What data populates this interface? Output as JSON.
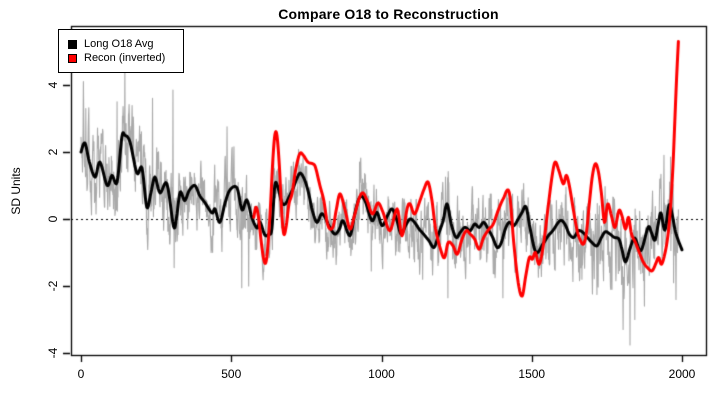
{
  "chart_data": {
    "type": "line",
    "title": "Compare O18 to Reconstruction",
    "ylabel": "SD Units",
    "xlabel": "",
    "xlim": [
      -33,
      2079
    ],
    "ylim": [
      -4.06,
      5.76
    ],
    "x_ticks": [
      0,
      500,
      1000,
      1500,
      2000
    ],
    "y_ticks": [
      -4,
      -2,
      0,
      2,
      4
    ],
    "zero_line": true,
    "grid": false,
    "legend": {
      "position": "topleft",
      "entries": [
        {
          "label": "Long O18 Avg",
          "color": "#000000"
        },
        {
          "label": "Recon (inverted)",
          "color": "#FF0000"
        }
      ]
    },
    "series": [
      {
        "key": "gray",
        "name": "O18 annual (raw)",
        "color": "#AAAAAA",
        "width": 1.1,
        "style": "noisy",
        "derived_from": "Long O18 Avg",
        "noise": {
          "seed": 20,
          "ar": 0.62,
          "amp": 0.75,
          "range": [
            0,
            1988
          ],
          "envelope": [
            [
              0,
              300,
              1.15
            ],
            [
              300,
              600,
              1.0
            ],
            [
              600,
              1100,
              0.9
            ],
            [
              1100,
              1550,
              1.0
            ],
            [
              1550,
              1990,
              1.2
            ]
          ],
          "spikes": [
            [
              8,
              4.1
            ],
            [
              16,
              3.3
            ],
            [
              120,
              3.5
            ],
            [
              146,
              4.65
            ],
            [
              238,
              3.6
            ],
            [
              306,
              3.85
            ],
            [
              310,
              -1.45
            ],
            [
              486,
              2.75
            ],
            [
              535,
              -2.05
            ],
            [
              558,
              -2.0
            ],
            [
              927,
              1.7
            ],
            [
              966,
              -1.55
            ],
            [
              1137,
              -1.8
            ],
            [
              1213,
              1.25
            ],
            [
              1221,
              -2.35
            ],
            [
              1378,
              -1.75
            ],
            [
              1404,
              -2.35
            ],
            [
              1667,
              -1.8
            ],
            [
              1717,
              -2.25
            ],
            [
              1767,
              -2.1
            ],
            [
              1804,
              -3.3
            ],
            [
              1827,
              -3.76
            ],
            [
              1843,
              -3.0
            ],
            [
              1875,
              -2.6
            ],
            [
              1940,
              1.9
            ],
            [
              1962,
              1.85
            ],
            [
              1972,
              -1.9
            ],
            [
              1980,
              -2.4
            ]
          ]
        }
      },
      {
        "key": "black",
        "name": "Long O18 Avg",
        "color": "#000000",
        "width": 3,
        "points": [
          [
            0,
            2.0
          ],
          [
            13,
            2.27
          ],
          [
            28,
            1.7
          ],
          [
            47,
            1.25
          ],
          [
            63,
            1.7
          ],
          [
            87,
            1.0
          ],
          [
            103,
            1.3
          ],
          [
            120,
            1.1
          ],
          [
            136,
            2.45
          ],
          [
            146,
            2.5
          ],
          [
            163,
            2.3
          ],
          [
            186,
            1.37
          ],
          [
            203,
            1.52
          ],
          [
            219,
            0.35
          ],
          [
            233,
            0.8
          ],
          [
            246,
            1.25
          ],
          [
            263,
            0.78
          ],
          [
            286,
            1.05
          ],
          [
            308,
            -0.22
          ],
          [
            318,
            0.05
          ],
          [
            330,
            0.8
          ],
          [
            345,
            0.55
          ],
          [
            360,
            0.85
          ],
          [
            379,
            1.0
          ],
          [
            395,
            0.7
          ],
          [
            413,
            0.48
          ],
          [
            436,
            0.18
          ],
          [
            446,
            0.3
          ],
          [
            462,
            -0.1
          ],
          [
            480,
            0.5
          ],
          [
            496,
            0.87
          ],
          [
            519,
            0.93
          ],
          [
            536,
            0.27
          ],
          [
            552,
            0.57
          ],
          [
            569,
            0.03
          ],
          [
            586,
            -0.27
          ],
          [
            596,
            -0.1
          ],
          [
            612,
            -0.48
          ],
          [
            625,
            -0.45
          ],
          [
            635,
            -0.3
          ],
          [
            645,
            1.0
          ],
          [
            655,
            0.95
          ],
          [
            668,
            0.5
          ],
          [
            680,
            0.45
          ],
          [
            692,
            0.65
          ],
          [
            705,
            0.9
          ],
          [
            718,
            1.2
          ],
          [
            730,
            1.37
          ],
          [
            745,
            1.15
          ],
          [
            758,
            0.75
          ],
          [
            770,
            0.25
          ],
          [
            785,
            -0.1
          ],
          [
            800,
            0.15
          ],
          [
            812,
            0.05
          ],
          [
            828,
            -0.25
          ],
          [
            845,
            -0.45
          ],
          [
            860,
            -0.3
          ],
          [
            872,
            -0.05
          ],
          [
            895,
            -0.5
          ],
          [
            912,
            0.2
          ],
          [
            928,
            0.65
          ],
          [
            945,
            0.55
          ],
          [
            968,
            -0.05
          ],
          [
            985,
            0.2
          ],
          [
            1002,
            -0.2
          ],
          [
            1020,
            0.1
          ],
          [
            1035,
            0.3
          ],
          [
            1050,
            0.0
          ],
          [
            1065,
            -0.45
          ],
          [
            1080,
            -0.2
          ],
          [
            1095,
            0.0
          ],
          [
            1110,
            -0.1
          ],
          [
            1125,
            -0.3
          ],
          [
            1140,
            -0.45
          ],
          [
            1158,
            -0.65
          ],
          [
            1175,
            -0.85
          ],
          [
            1190,
            -0.45
          ],
          [
            1205,
            -0.05
          ],
          [
            1218,
            0.45
          ],
          [
            1232,
            -0.15
          ],
          [
            1248,
            -0.55
          ],
          [
            1262,
            -0.4
          ],
          [
            1278,
            -0.25
          ],
          [
            1295,
            -0.35
          ],
          [
            1310,
            -0.15
          ],
          [
            1325,
            -0.25
          ],
          [
            1340,
            -0.1
          ],
          [
            1355,
            -0.3
          ],
          [
            1370,
            -0.55
          ],
          [
            1385,
            -0.85
          ],
          [
            1398,
            -0.72
          ],
          [
            1412,
            -0.3
          ],
          [
            1425,
            -0.1
          ],
          [
            1440,
            -0.2
          ],
          [
            1455,
            0.0
          ],
          [
            1468,
            0.2
          ],
          [
            1481,
            0.36
          ],
          [
            1495,
            -0.3
          ],
          [
            1514,
            -1.0
          ],
          [
            1537,
            -0.75
          ],
          [
            1555,
            -0.5
          ],
          [
            1570,
            -0.35
          ],
          [
            1594,
            -0.05
          ],
          [
            1610,
            -0.15
          ],
          [
            1625,
            -0.45
          ],
          [
            1640,
            -0.55
          ],
          [
            1655,
            -0.35
          ],
          [
            1670,
            -0.4
          ],
          [
            1685,
            -0.55
          ],
          [
            1700,
            -0.7
          ],
          [
            1717,
            -0.8
          ],
          [
            1732,
            -0.55
          ],
          [
            1745,
            -0.38
          ],
          [
            1760,
            -0.45
          ],
          [
            1775,
            -0.55
          ],
          [
            1790,
            -0.6
          ],
          [
            1800,
            -0.9
          ],
          [
            1812,
            -1.28
          ],
          [
            1828,
            -0.85
          ],
          [
            1843,
            -0.57
          ],
          [
            1863,
            -0.95
          ],
          [
            1887,
            -0.25
          ],
          [
            1898,
            -0.4
          ],
          [
            1910,
            -0.63
          ],
          [
            1922,
            -0.1
          ],
          [
            1930,
            0.18
          ],
          [
            1943,
            -0.33
          ],
          [
            1957,
            0.42
          ],
          [
            1968,
            0.1
          ],
          [
            1977,
            -0.33
          ],
          [
            1986,
            -0.6
          ],
          [
            2000,
            -0.92
          ]
        ]
      },
      {
        "key": "red",
        "name": "Recon (inverted)",
        "color": "#FF0000",
        "width": 3,
        "points": [
          [
            575,
            0.05
          ],
          [
            582,
            0.35
          ],
          [
            590,
            0.1
          ],
          [
            600,
            -0.7
          ],
          [
            608,
            -1.2
          ],
          [
            615,
            -1.3
          ],
          [
            622,
            -0.8
          ],
          [
            630,
            0.3
          ],
          [
            638,
            1.7
          ],
          [
            645,
            2.5
          ],
          [
            652,
            2.5
          ],
          [
            660,
            1.6
          ],
          [
            668,
            0.2
          ],
          [
            675,
            -0.45
          ],
          [
            683,
            -0.2
          ],
          [
            692,
            0.45
          ],
          [
            702,
            0.75
          ],
          [
            715,
            1.5
          ],
          [
            728,
            1.95
          ],
          [
            740,
            1.9
          ],
          [
            755,
            1.7
          ],
          [
            770,
            1.65
          ],
          [
            780,
            1.55
          ],
          [
            795,
            1.0
          ],
          [
            808,
            0.55
          ],
          [
            822,
            -0.2
          ],
          [
            838,
            -0.25
          ],
          [
            850,
            0.3
          ],
          [
            862,
            0.75
          ],
          [
            878,
            0.3
          ],
          [
            895,
            -0.3
          ],
          [
            910,
            0.1
          ],
          [
            925,
            0.6
          ],
          [
            938,
            0.78
          ],
          [
            952,
            0.55
          ],
          [
            970,
            0.15
          ],
          [
            988,
            0.48
          ],
          [
            1005,
            0.2
          ],
          [
            1028,
            -0.35
          ],
          [
            1052,
            0.3
          ],
          [
            1068,
            -0.5
          ],
          [
            1085,
            0.3
          ],
          [
            1095,
            0.45
          ],
          [
            1110,
            0.15
          ],
          [
            1128,
            0.55
          ],
          [
            1142,
            0.9
          ],
          [
            1155,
            1.1
          ],
          [
            1168,
            0.55
          ],
          [
            1180,
            -0.3
          ],
          [
            1198,
            -0.95
          ],
          [
            1210,
            -1.15
          ],
          [
            1222,
            -0.7
          ],
          [
            1238,
            -0.8
          ],
          [
            1252,
            -1.05
          ],
          [
            1268,
            -0.6
          ],
          [
            1282,
            -0.35
          ],
          [
            1295,
            -0.45
          ],
          [
            1310,
            -0.6
          ],
          [
            1325,
            -0.9
          ],
          [
            1340,
            -0.55
          ],
          [
            1358,
            -0.3
          ],
          [
            1372,
            -0.15
          ],
          [
            1388,
            0.25
          ],
          [
            1405,
            0.6
          ],
          [
            1425,
            0.8
          ],
          [
            1440,
            -0.7
          ],
          [
            1455,
            -1.9
          ],
          [
            1468,
            -2.3
          ],
          [
            1480,
            -1.7
          ],
          [
            1492,
            -1.15
          ],
          [
            1502,
            -1.2
          ],
          [
            1512,
            -1.0
          ],
          [
            1525,
            -1.35
          ],
          [
            1540,
            -0.7
          ],
          [
            1555,
            0.4
          ],
          [
            1568,
            1.3
          ],
          [
            1578,
            1.7
          ],
          [
            1590,
            1.45
          ],
          [
            1605,
            1.05
          ],
          [
            1615,
            1.3
          ],
          [
            1625,
            1.0
          ],
          [
            1638,
            0.3
          ],
          [
            1650,
            -0.3
          ],
          [
            1660,
            -0.6
          ],
          [
            1672,
            -0.75
          ],
          [
            1682,
            -0.4
          ],
          [
            1692,
            0.5
          ],
          [
            1702,
            1.3
          ],
          [
            1712,
            1.65
          ],
          [
            1722,
            1.4
          ],
          [
            1732,
            0.75
          ],
          [
            1742,
            -0.1
          ],
          [
            1753,
            0.45
          ],
          [
            1765,
            0.1
          ],
          [
            1777,
            -0.25
          ],
          [
            1790,
            0.25
          ],
          [
            1800,
            0.1
          ],
          [
            1812,
            -0.3
          ],
          [
            1822,
            0.05
          ],
          [
            1832,
            -0.45
          ],
          [
            1845,
            -0.7
          ],
          [
            1858,
            -1.0
          ],
          [
            1872,
            -1.3
          ],
          [
            1885,
            -1.45
          ],
          [
            1900,
            -1.55
          ],
          [
            1912,
            -1.35
          ],
          [
            1922,
            -1.15
          ],
          [
            1932,
            -1.35
          ],
          [
            1945,
            -0.95
          ],
          [
            1955,
            -0.35
          ],
          [
            1963,
            0.5
          ],
          [
            1970,
            1.6
          ],
          [
            1976,
            2.9
          ],
          [
            1982,
            4.2
          ],
          [
            1988,
            5.3
          ]
        ]
      }
    ]
  }
}
